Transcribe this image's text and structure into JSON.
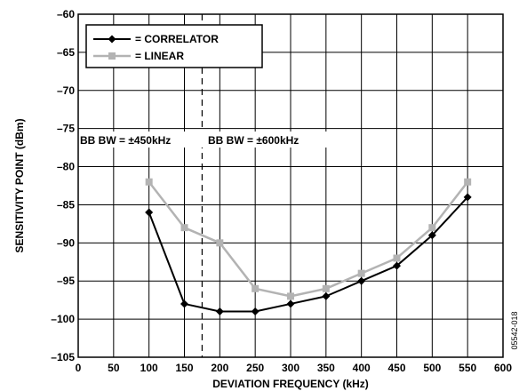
{
  "chart_data": {
    "type": "line",
    "xlabel": "DEVIATION FREQUENCY (kHz)",
    "ylabel": "SENSITIVITY POINT (dBm)",
    "xlim": [
      0,
      600
    ],
    "ylim": [
      -105,
      -60
    ],
    "x_ticks": [
      "0",
      "50",
      "100",
      "150",
      "200",
      "250",
      "300",
      "350",
      "400",
      "450",
      "500",
      "550",
      "600"
    ],
    "y_ticks": [
      "–60",
      "–65",
      "–70",
      "–75",
      "–80",
      "–85",
      "–90",
      "–95",
      "–100",
      "–105"
    ],
    "grid": true,
    "legend_position": "top-left",
    "series": [
      {
        "name": "= CORRELATOR",
        "color": "#000000",
        "marker": "diamond",
        "x": [
          100,
          150,
          200,
          250,
          300,
          350,
          400,
          450,
          500,
          550
        ],
        "y": [
          -86,
          -98,
          -99,
          -99,
          -98,
          -97,
          -95,
          -93,
          -89,
          -84
        ]
      },
      {
        "name": "= LINEAR",
        "color": "#b3b3b3",
        "marker": "square",
        "x": [
          100,
          150,
          200,
          250,
          300,
          350,
          400,
          450,
          500,
          550
        ],
        "y": [
          -82,
          -88,
          -90,
          -96,
          -97,
          -96,
          -94,
          -92,
          -88,
          -82
        ]
      }
    ],
    "annotations": [
      {
        "text": "BB BW = ±450kHz"
      },
      {
        "text": "BB BW = ±600kHz"
      }
    ],
    "divider_x": 175,
    "figure_id": "05542-018"
  }
}
